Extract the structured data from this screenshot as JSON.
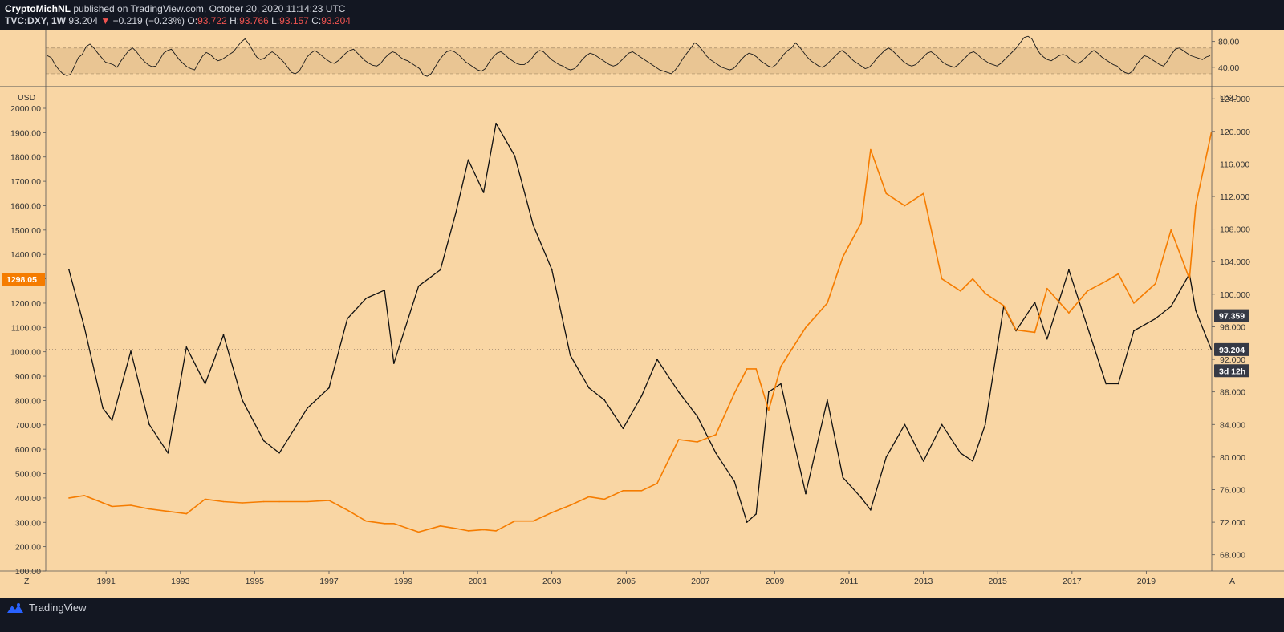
{
  "header": {
    "author": "CryptoMichNL",
    "published": "published on TradingView.com, October 20, 2020 11:14:23 UTC",
    "symbol": "TVC:DXY, 1W",
    "last": "93.204",
    "change_arrow": "▼",
    "change": "−0.219 (−0.23%)",
    "o_label": "O:",
    "o_value": "93.722",
    "h_label": "H:",
    "h_value": "93.766",
    "l_label": "L:",
    "l_value": "93.157",
    "c_label": "C:",
    "c_value": "93.204"
  },
  "footer": {
    "brand": "TradingView"
  },
  "colors": {
    "background": "#131722",
    "pane": "#f9d6a4",
    "dxy": "#111111",
    "gold": "#f57c00",
    "oscillator_band": "#e6c291",
    "tag_dark": "#363a45"
  },
  "chart_data": [
    {
      "type": "line",
      "name_pane": "oscillator",
      "y_ticks": [
        "80.00",
        "40.00"
      ],
      "ylim": [
        15,
        92
      ],
      "band": [
        30,
        70
      ],
      "series": [
        {
          "values": [
            58,
            55,
            44,
            36,
            30,
            27,
            29,
            42,
            55,
            60,
            72,
            76,
            70,
            62,
            55,
            48,
            46,
            44,
            40,
            50,
            58,
            66,
            70,
            64,
            56,
            49,
            44,
            41,
            42,
            52,
            62,
            66,
            68,
            60,
            52,
            46,
            41,
            38,
            36,
            47,
            57,
            63,
            60,
            54,
            50,
            52,
            56,
            60,
            64,
            72,
            79,
            84,
            76,
            66,
            56,
            52,
            54,
            60,
            64,
            60,
            54,
            48,
            40,
            32,
            30,
            34,
            45,
            56,
            62,
            66,
            62,
            57,
            52,
            48,
            46,
            50,
            56,
            62,
            66,
            68,
            62,
            56,
            50,
            46,
            43,
            42,
            46,
            54,
            60,
            64,
            62,
            56,
            52,
            50,
            46,
            42,
            38,
            28,
            26,
            30,
            40,
            50,
            58,
            64,
            66,
            64,
            60,
            54,
            48,
            44,
            40,
            36,
            34,
            38,
            48,
            56,
            62,
            64,
            60,
            54,
            50,
            46,
            44,
            44,
            48,
            54,
            62,
            66,
            64,
            58,
            52,
            48,
            44,
            42,
            38,
            36,
            38,
            44,
            52,
            58,
            62,
            60,
            56,
            52,
            48,
            44,
            42,
            44,
            50,
            56,
            62,
            64,
            60,
            56,
            52,
            48,
            44,
            40,
            36,
            34,
            32,
            30,
            36,
            44,
            54,
            62,
            70,
            78,
            74,
            66,
            58,
            52,
            48,
            44,
            40,
            38,
            36,
            38,
            44,
            52,
            58,
            62,
            60,
            56,
            50,
            46,
            42,
            40,
            44,
            52,
            60,
            66,
            70,
            78,
            72,
            64,
            56,
            50,
            46,
            42,
            40,
            44,
            50,
            56,
            62,
            66,
            62,
            56,
            50,
            46,
            42,
            38,
            40,
            46,
            54,
            60,
            66,
            70,
            66,
            60,
            54,
            48,
            44,
            42,
            44,
            50,
            56,
            62,
            64,
            60,
            54,
            48,
            44,
            42,
            40,
            44,
            50,
            56,
            62,
            64,
            60,
            54,
            50,
            46,
            44,
            42,
            46,
            52,
            58,
            64,
            70,
            78,
            86,
            88,
            84,
            72,
            62,
            56,
            52,
            50,
            54,
            58,
            60,
            58,
            52,
            48,
            46,
            50,
            56,
            62,
            66,
            62,
            56,
            52,
            48,
            44,
            42,
            36,
            32,
            30,
            34,
            44,
            52,
            58,
            56,
            52,
            48,
            44,
            42,
            50,
            60,
            68,
            70,
            66,
            62,
            58,
            56,
            54,
            52,
            56,
            58
          ]
        }
      ]
    },
    {
      "type": "line",
      "name_pane": "main",
      "x": [
        "1990-01",
        "1990-06",
        "1990-12",
        "1991-03",
        "1991-09",
        "1992-03",
        "1992-09",
        "1993-03",
        "1993-09",
        "1994-03",
        "1994-09",
        "1995-04",
        "1995-09",
        "1996-06",
        "1997-01",
        "1997-07",
        "1998-01",
        "1998-07",
        "1998-10",
        "1999-06",
        "2000-01",
        "2000-06",
        "2000-10",
        "2001-03",
        "2001-07",
        "2002-01",
        "2002-07",
        "2003-01",
        "2003-07",
        "2004-01",
        "2004-06",
        "2004-12",
        "2005-06",
        "2005-11",
        "2006-06",
        "2006-12",
        "2007-06",
        "2007-12",
        "2008-04",
        "2008-07",
        "2008-11",
        "2009-03",
        "2009-11",
        "2010-06",
        "2010-11",
        "2011-05",
        "2011-08",
        "2012-01",
        "2012-07",
        "2013-01",
        "2013-07",
        "2014-01",
        "2014-05",
        "2014-09",
        "2015-03",
        "2015-07",
        "2016-01",
        "2016-05",
        "2016-12",
        "2017-06",
        "2017-12",
        "2018-04",
        "2018-09",
        "2019-04",
        "2019-09",
        "2020-03",
        "2020-05",
        "2020-10"
      ],
      "y_left_ticks": [
        "2000.00",
        "1900.00",
        "1800.00",
        "1700.00",
        "1600.00",
        "1500.00",
        "1400.00",
        "1300.00",
        "1200.00",
        "1100.00",
        "1000.00",
        "900.00",
        "800.00",
        "700.00",
        "600.00",
        "500.00",
        "400.00",
        "300.00",
        "200.00",
        "100.00"
      ],
      "y_right_ticks": [
        "124.000",
        "120.000",
        "116.000",
        "112.000",
        "108.000",
        "104.000",
        "100.000",
        "96.000",
        "92.000",
        "88.000",
        "84.000",
        "80.000",
        "76.000",
        "72.000",
        "68.000"
      ],
      "x_ticks": [
        "1991",
        "1993",
        "1995",
        "1997",
        "1999",
        "2001",
        "2003",
        "2005",
        "2007",
        "2009",
        "2011",
        "2013",
        "2015",
        "2017",
        "2019"
      ],
      "left_unit": "USD",
      "right_unit": "USD",
      "left_ylim": [
        100,
        2000
      ],
      "right_ylim": [
        66,
        125.4
      ],
      "series": [
        {
          "axis": "right",
          "values": [
            103.0,
            96.0,
            86.0,
            84.5,
            93.0,
            84.0,
            80.5,
            93.5,
            89.0,
            95.0,
            87.0,
            82.0,
            80.5,
            86.0,
            88.5,
            97.0,
            99.5,
            100.5,
            91.5,
            101.0,
            103.0,
            110.0,
            116.5,
            112.5,
            121.0,
            117.0,
            108.5,
            103.0,
            92.5,
            88.5,
            87.0,
            83.5,
            87.5,
            92.0,
            88.0,
            85.0,
            80.5,
            77.0,
            72.0,
            73.0,
            88.0,
            89.0,
            75.5,
            87.0,
            77.5,
            75.0,
            73.5,
            80.0,
            84.0,
            79.5,
            84.0,
            80.5,
            79.5,
            84.0,
            98.5,
            95.5,
            99.0,
            94.5,
            103.0,
            96.0,
            89.0,
            89.0,
            95.5,
            97.0,
            98.5,
            102.5,
            98.0,
            93.2
          ]
        },
        {
          "axis": "left",
          "values": [
            400,
            410,
            380,
            365,
            370,
            355,
            345,
            335,
            395,
            385,
            380,
            385,
            385,
            385,
            390,
            350,
            305,
            295,
            295,
            260,
            285,
            275,
            265,
            270,
            265,
            305,
            305,
            340,
            370,
            405,
            395,
            430,
            430,
            460,
            640,
            630,
            660,
            830,
            930,
            930,
            760,
            940,
            1100,
            1200,
            1390,
            1530,
            1830,
            1650,
            1600,
            1650,
            1300,
            1250,
            1300,
            1240,
            1190,
            1090,
            1080,
            1260,
            1160,
            1250,
            1290,
            1320,
            1200,
            1280,
            1500,
            1300,
            1600,
            1900
          ]
        }
      ],
      "markers": [
        {
          "axis": "left",
          "label": "1298.05",
          "value": 1298.05,
          "color": "#f57c00"
        },
        {
          "axis": "right",
          "label": "97.359",
          "value": 97.359,
          "color": "#363a45"
        },
        {
          "axis": "right",
          "label": "93.204",
          "value": 93.204,
          "color": "#363a45"
        },
        {
          "axis": "right",
          "label": "3d 12h",
          "value": 90.6,
          "color": "#363a45"
        }
      ],
      "corner_left": "Z",
      "corner_right": "A"
    }
  ]
}
